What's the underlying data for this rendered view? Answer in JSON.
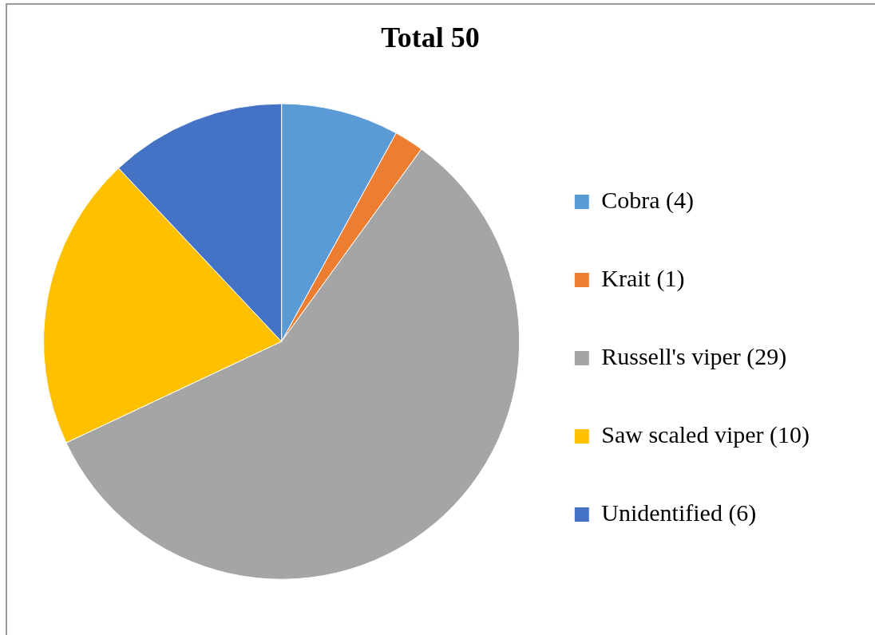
{
  "chart_data": {
    "type": "pie",
    "title": "Total 50",
    "categories": [
      "Cobra (4)",
      "Krait (1)",
      "Russell's viper (29)",
      "Saw scaled viper (10)",
      "Unidentified (6)"
    ],
    "values": [
      4,
      1,
      29,
      10,
      6
    ],
    "colors": [
      "#5b9bd5",
      "#ed7d31",
      "#a5a5a5",
      "#ffc000",
      "#4472c4"
    ],
    "legend": "right"
  }
}
